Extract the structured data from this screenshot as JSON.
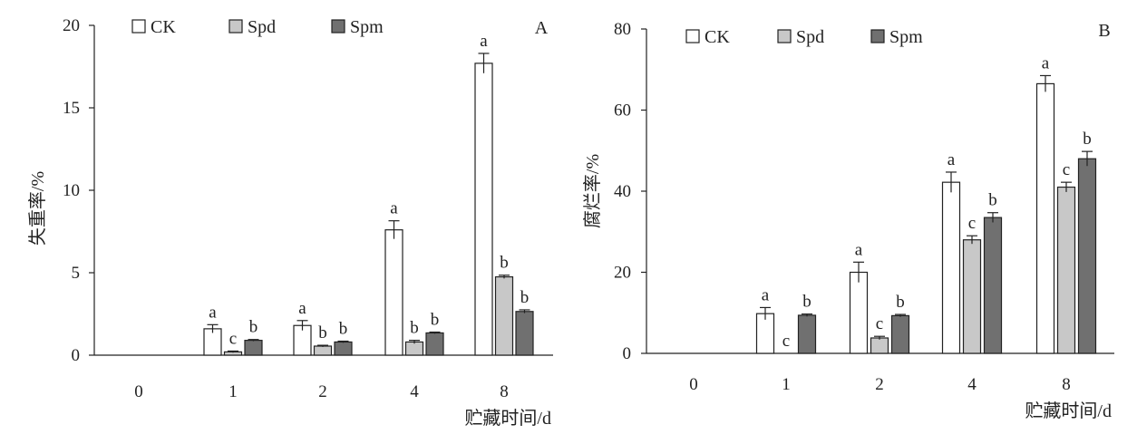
{
  "colors": {
    "CK": "#ffffff",
    "Spd": "#c8c8c8",
    "Spm": "#707070",
    "stroke": "#222222"
  },
  "legend": [
    "CK",
    "Spd",
    "Spm"
  ],
  "chart_data": [
    {
      "type": "bar",
      "panel_label": "A",
      "title": "",
      "ylabel": "失重率/%",
      "xlabel": "贮藏时间/d",
      "categories": [
        "0",
        "1",
        "2",
        "4",
        "8"
      ],
      "ylim": [
        0,
        20
      ],
      "yticks": [
        "0",
        "5",
        "10",
        "15",
        "20"
      ],
      "grid": false,
      "legend_position": "top",
      "series": [
        {
          "name": "CK",
          "values": [
            0,
            1.6,
            1.8,
            7.6,
            17.7
          ],
          "errors": [
            0,
            0.25,
            0.3,
            0.55,
            0.6
          ],
          "letters": [
            "",
            "a",
            "a",
            "a",
            "a"
          ]
        },
        {
          "name": "Spd",
          "values": [
            0,
            0.2,
            0.55,
            0.8,
            4.75
          ],
          "errors": [
            0,
            0.05,
            0.05,
            0.1,
            0.1
          ],
          "letters": [
            "",
            "c",
            "b",
            "b",
            "b"
          ]
        },
        {
          "name": "Spm",
          "values": [
            0,
            0.9,
            0.8,
            1.35,
            2.65
          ],
          "errors": [
            0,
            0.05,
            0.05,
            0.05,
            0.1
          ],
          "letters": [
            "",
            "b",
            "b",
            "b",
            "b"
          ]
        }
      ]
    },
    {
      "type": "bar",
      "panel_label": "B",
      "title": "",
      "ylabel": "腐烂率/%",
      "xlabel": "贮藏时间/d",
      "categories": [
        "0",
        "1",
        "2",
        "4",
        "8"
      ],
      "ylim": [
        0,
        80
      ],
      "yticks": [
        "0",
        "20",
        "40",
        "60",
        "80"
      ],
      "grid": false,
      "legend_position": "top",
      "series": [
        {
          "name": "CK",
          "values": [
            0,
            9.8,
            20.0,
            42.2,
            66.5
          ],
          "errors": [
            0,
            1.5,
            2.5,
            2.5,
            2.0
          ],
          "letters": [
            "",
            "a",
            "a",
            "a",
            "a"
          ]
        },
        {
          "name": "Spd",
          "values": [
            0,
            0,
            3.8,
            28.0,
            41.0
          ],
          "errors": [
            0,
            0,
            0.4,
            1.0,
            1.2
          ],
          "letters": [
            "",
            "c",
            "c",
            "c",
            "c"
          ]
        },
        {
          "name": "Spm",
          "values": [
            0,
            9.4,
            9.3,
            33.5,
            48.0
          ],
          "errors": [
            0,
            0.3,
            0.3,
            1.2,
            1.8
          ],
          "letters": [
            "",
            "b",
            "b",
            "b",
            "b"
          ]
        }
      ]
    }
  ]
}
